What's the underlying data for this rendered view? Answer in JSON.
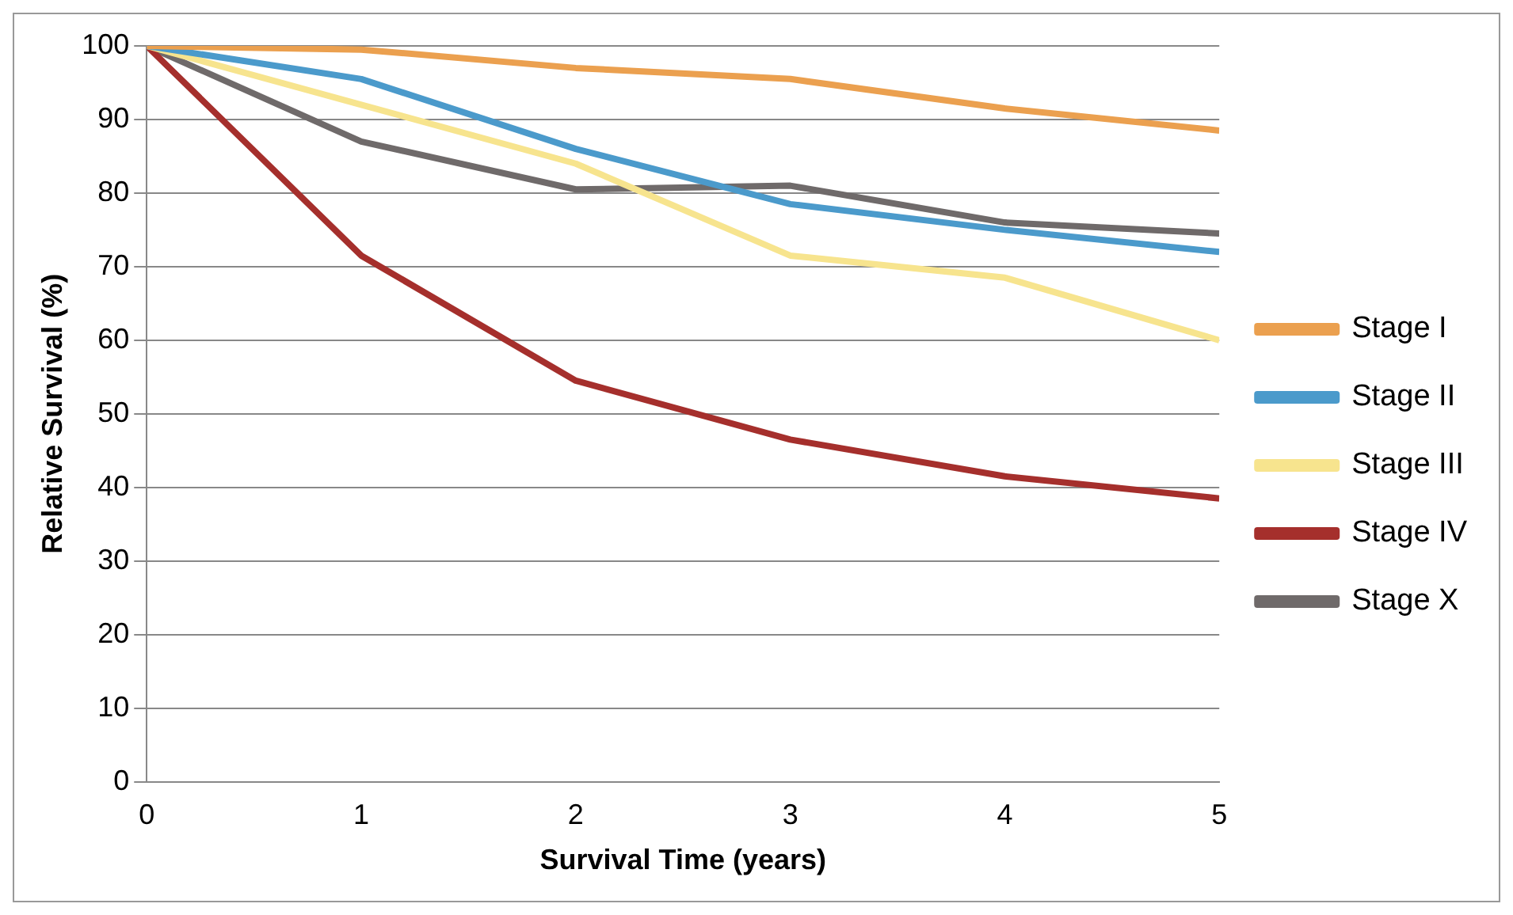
{
  "chart_data": {
    "type": "line",
    "xlabel": "Survival Time (years)",
    "ylabel": "Relative Survival (%)",
    "x": [
      0,
      1,
      2,
      3,
      4,
      5
    ],
    "series": [
      {
        "name": "Stage I",
        "color": "#eba04f",
        "values": [
          100,
          99.5,
          97,
          95.5,
          91.5,
          88.5
        ]
      },
      {
        "name": "Stage II",
        "color": "#4b9acb",
        "values": [
          100,
          95.5,
          86,
          78.5,
          75,
          72
        ]
      },
      {
        "name": "Stage III",
        "color": "#f7e48e",
        "values": [
          100,
          92,
          84,
          71.5,
          68.5,
          60
        ]
      },
      {
        "name": "Stage IV",
        "color": "#a52f2c",
        "values": [
          100,
          71.5,
          54.5,
          46.5,
          41.5,
          38.5
        ]
      },
      {
        "name": "Stage X",
        "color": "#6f6a6a",
        "values": [
          100,
          87,
          80.5,
          81,
          76,
          74.5
        ]
      }
    ],
    "xlim": [
      0,
      5
    ],
    "xticks": [
      0,
      1,
      2,
      3,
      4,
      5
    ],
    "ylim": [
      0,
      100
    ],
    "yticks": [
      0,
      10,
      20,
      30,
      40,
      50,
      60,
      70,
      80,
      90,
      100
    ],
    "grid": "y",
    "legend": "right",
    "marker": "none",
    "line_style": "solid"
  }
}
